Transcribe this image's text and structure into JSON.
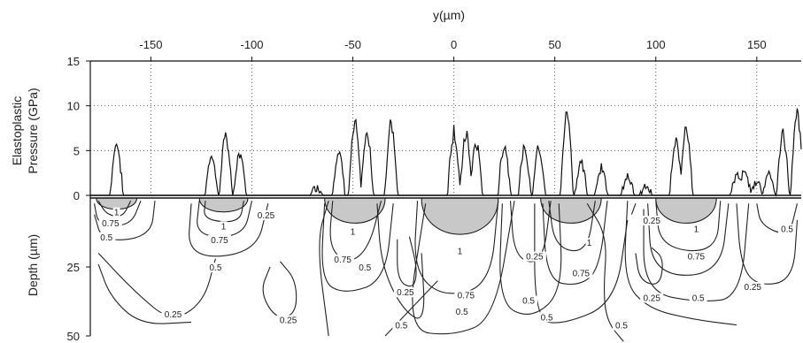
{
  "chart_data": {
    "type": "line",
    "x_axis": {
      "label": "y(µm)",
      "position": "top",
      "range": [
        -180,
        172
      ],
      "ticks": [
        -150,
        -100,
        -50,
        0,
        50,
        100,
        150
      ],
      "tick_labels": [
        "-150",
        "-100",
        "-50",
        "0",
        "50",
        "100",
        "150"
      ]
    },
    "top_panel": {
      "ylabel_line1": "Elastoplastic",
      "ylabel_line2": "Pressure (GPa)",
      "ylim": [
        0,
        15
      ],
      "yticks": [
        0,
        5,
        10,
        15
      ],
      "ytick_labels": [
        "0",
        "5",
        "10",
        "15"
      ],
      "grid": "dotted",
      "peaks": [
        {
          "x": -167,
          "peak": 6.5
        },
        {
          "x": -120,
          "peak": 5.0
        },
        {
          "x": -113,
          "peak": 7.6
        },
        {
          "x": -106,
          "peak": 5.3
        },
        {
          "x": -68,
          "peak": 1.0
        },
        {
          "x": -57,
          "peak": 5.5
        },
        {
          "x": -49,
          "peak": 8.9
        },
        {
          "x": -43,
          "peak": 7.5
        },
        {
          "x": -31,
          "peak": 9.0
        },
        {
          "x": 0,
          "peak": 8.0
        },
        {
          "x": 6,
          "peak": 7.6
        },
        {
          "x": 11,
          "peak": 6.5
        },
        {
          "x": 25,
          "peak": 6.3
        },
        {
          "x": 35,
          "peak": 5.6
        },
        {
          "x": 42,
          "peak": 6.3
        },
        {
          "x": 56,
          "peak": 10.4
        },
        {
          "x": 63,
          "peak": 4.0
        },
        {
          "x": 73,
          "peak": 3.5
        },
        {
          "x": 86,
          "peak": 2.6
        },
        {
          "x": 95,
          "peak": 1.0
        },
        {
          "x": 110,
          "peak": 6.5
        },
        {
          "x": 115,
          "peak": 9.1
        },
        {
          "x": 140,
          "peak": 2.5
        },
        {
          "x": 144,
          "peak": 3.0
        },
        {
          "x": 150,
          "peak": 1.8
        },
        {
          "x": 156,
          "peak": 2.8
        },
        {
          "x": 163,
          "peak": 7.6
        },
        {
          "x": 170,
          "peak": 10.2
        }
      ]
    },
    "bottom_panel": {
      "ylabel": "Depth (µm)",
      "ylim": [
        0,
        50
      ],
      "yticks": [
        25,
        50
      ],
      "ytick_labels": [
        "25",
        "50"
      ],
      "contour_labels": [
        {
          "text": "1",
          "x": -167,
          "depth": 6
        },
        {
          "text": "0.75",
          "x": -170,
          "depth": 10
        },
        {
          "text": "0.5",
          "x": -172,
          "depth": 15
        },
        {
          "text": "0.25",
          "x": -139,
          "depth": 43
        },
        {
          "text": "1",
          "x": -114,
          "depth": 11
        },
        {
          "text": "0.75",
          "x": -116,
          "depth": 16
        },
        {
          "text": "0.5",
          "x": -118,
          "depth": 26
        },
        {
          "text": "0.25",
          "x": -93,
          "depth": 7
        },
        {
          "text": "0.25",
          "x": -82,
          "depth": 45
        },
        {
          "text": "1",
          "x": -50,
          "depth": 13
        },
        {
          "text": "0.75",
          "x": -55,
          "depth": 23
        },
        {
          "text": "0.5",
          "x": -44,
          "depth": 26
        },
        {
          "text": "0.25",
          "x": -24,
          "depth": 35
        },
        {
          "text": "1",
          "x": 3,
          "depth": 20
        },
        {
          "text": "0.75",
          "x": 6,
          "depth": 36
        },
        {
          "text": "0.5",
          "x": -26,
          "depth": 47
        },
        {
          "text": "0.5",
          "x": 4,
          "depth": 42
        },
        {
          "text": "0.25",
          "x": 40,
          "depth": 22
        },
        {
          "text": "0.5",
          "x": 37,
          "depth": 38
        },
        {
          "text": "1",
          "x": 67,
          "depth": 17
        },
        {
          "text": "0.75",
          "x": 63,
          "depth": 28
        },
        {
          "text": "0.5",
          "x": 46,
          "depth": 44
        },
        {
          "text": "0.25",
          "x": 98,
          "depth": 9
        },
        {
          "text": "0.25",
          "x": 98,
          "depth": 37
        },
        {
          "text": "0.5",
          "x": 83,
          "depth": 47
        },
        {
          "text": "1",
          "x": 120,
          "depth": 12
        },
        {
          "text": "0.75",
          "x": 120,
          "depth": 22
        },
        {
          "text": "0.5",
          "x": 121,
          "depth": 37
        },
        {
          "text": "0.25",
          "x": 148,
          "depth": 33
        },
        {
          "text": "0.5",
          "x": 165,
          "depth": 12
        }
      ]
    }
  }
}
